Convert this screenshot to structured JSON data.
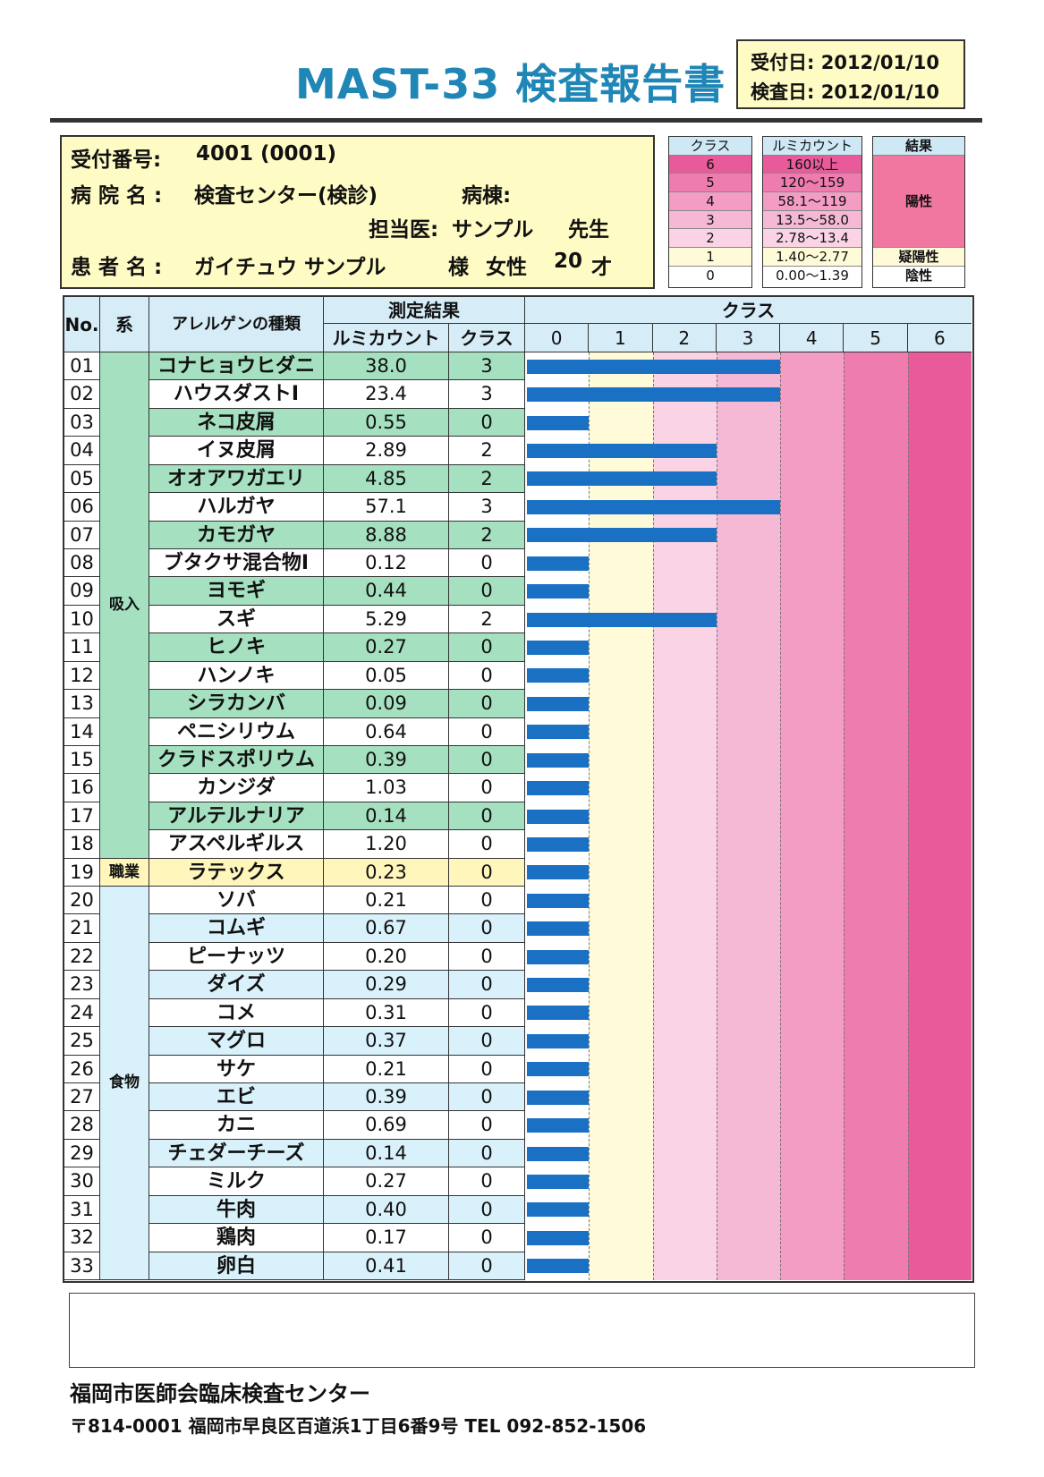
{
  "title": "MAST-33 検査報告書",
  "dates": {
    "received_label": "受付日:",
    "received": "2012/01/10",
    "tested_label": "検査日:",
    "tested": "2012/01/10"
  },
  "info": {
    "receipt_label": "受付番号:",
    "receipt_no": "4001 (0001)",
    "hospital_label": "病 院 名 :",
    "hospital": "検査センター(検診)",
    "ward_label": "病棟:",
    "doctor_label": "担当医:",
    "doctor": "サンプル",
    "doctor_suffix": "先生",
    "patient_label": "患 者 名 :",
    "patient": "ガイチュウ サンプル",
    "patient_suffix": "様",
    "sex": "女性",
    "age": "20",
    "age_unit": "才"
  },
  "legend": {
    "class_header": "クラス",
    "count_header": "ルミカウント",
    "result_header": "結果",
    "rows": [
      {
        "cls": "6",
        "range": "160以上",
        "color": "#e85a9a"
      },
      {
        "cls": "5",
        "range": "120〜159",
        "color": "#ee7cae"
      },
      {
        "cls": "4",
        "range": "58.1〜119",
        "color": "#f39cc4"
      },
      {
        "cls": "3",
        "range": "13.5〜58.0",
        "color": "#f6b9d5"
      },
      {
        "cls": "2",
        "range": "2.78〜13.4",
        "color": "#fad4e5"
      },
      {
        "cls": "1",
        "range": "1.40〜2.77",
        "color": "#fffbd8"
      },
      {
        "cls": "0",
        "range": "0.00〜1.39",
        "color": "#ffffff"
      }
    ],
    "positive": "陽性",
    "borderline": "疑陽性",
    "negative": "陰性"
  },
  "table": {
    "h_no": "No.",
    "h_group": "系",
    "h_allergen": "アレルゲンの種類",
    "h_result": "測定結果",
    "h_count": "ルミカウント",
    "h_class": "クラス",
    "h_chart": "クラス",
    "class_ticks": [
      "0",
      "1",
      "2",
      "3",
      "4",
      "5",
      "6"
    ],
    "groups": [
      {
        "name": "吸入",
        "from": 1,
        "to": 18,
        "color": "#a5e0c0"
      },
      {
        "name": "職業",
        "from": 19,
        "to": 19,
        "color": "#fff6bc"
      },
      {
        "name": "食物",
        "from": 20,
        "to": 33,
        "color": "#d9f1fa"
      }
    ],
    "rows": [
      {
        "no": "01",
        "name": "コナヒョウヒダニ",
        "count": "38.0",
        "cls": "3"
      },
      {
        "no": "02",
        "name": "ハウスダストⅠ",
        "count": "23.4",
        "cls": "3"
      },
      {
        "no": "03",
        "name": "ネコ皮屑",
        "count": "0.55",
        "cls": "0"
      },
      {
        "no": "04",
        "name": "イヌ皮屑",
        "count": "2.89",
        "cls": "2"
      },
      {
        "no": "05",
        "name": "オオアワガエリ",
        "count": "4.85",
        "cls": "2"
      },
      {
        "no": "06",
        "name": "ハルガヤ",
        "count": "57.1",
        "cls": "3"
      },
      {
        "no": "07",
        "name": "カモガヤ",
        "count": "8.88",
        "cls": "2"
      },
      {
        "no": "08",
        "name": "ブタクサ混合物Ⅰ",
        "count": "0.12",
        "cls": "0"
      },
      {
        "no": "09",
        "name": "ヨモギ",
        "count": "0.44",
        "cls": "0"
      },
      {
        "no": "10",
        "name": "スギ",
        "count": "5.29",
        "cls": "2"
      },
      {
        "no": "11",
        "name": "ヒノキ",
        "count": "0.27",
        "cls": "0"
      },
      {
        "no": "12",
        "name": "ハンノキ",
        "count": "0.05",
        "cls": "0"
      },
      {
        "no": "13",
        "name": "シラカンバ",
        "count": "0.09",
        "cls": "0"
      },
      {
        "no": "14",
        "name": "ペニシリウム",
        "count": "0.64",
        "cls": "0"
      },
      {
        "no": "15",
        "name": "クラドスポリウム",
        "count": "0.39",
        "cls": "0"
      },
      {
        "no": "16",
        "name": "カンジダ",
        "count": "1.03",
        "cls": "0"
      },
      {
        "no": "17",
        "name": "アルテルナリア",
        "count": "0.14",
        "cls": "0"
      },
      {
        "no": "18",
        "name": "アスペルギルス",
        "count": "1.20",
        "cls": "0"
      },
      {
        "no": "19",
        "name": "ラテックス",
        "count": "0.23",
        "cls": "0"
      },
      {
        "no": "20",
        "name": "ソバ",
        "count": "0.21",
        "cls": "0"
      },
      {
        "no": "21",
        "name": "コムギ",
        "count": "0.67",
        "cls": "0"
      },
      {
        "no": "22",
        "name": "ピーナッツ",
        "count": "0.20",
        "cls": "0"
      },
      {
        "no": "23",
        "name": "ダイズ",
        "count": "0.29",
        "cls": "0"
      },
      {
        "no": "24",
        "name": "コメ",
        "count": "0.31",
        "cls": "0"
      },
      {
        "no": "25",
        "name": "マグロ",
        "count": "0.37",
        "cls": "0"
      },
      {
        "no": "26",
        "name": "サケ",
        "count": "0.21",
        "cls": "0"
      },
      {
        "no": "27",
        "name": "エビ",
        "count": "0.39",
        "cls": "0"
      },
      {
        "no": "28",
        "name": "カニ",
        "count": "0.69",
        "cls": "0"
      },
      {
        "no": "29",
        "name": "チェダーチーズ",
        "count": "0.14",
        "cls": "0"
      },
      {
        "no": "30",
        "name": "ミルク",
        "count": "0.27",
        "cls": "0"
      },
      {
        "no": "31",
        "name": "牛肉",
        "count": "0.40",
        "cls": "0"
      },
      {
        "no": "32",
        "name": "鶏肉",
        "count": "0.17",
        "cls": "0"
      },
      {
        "no": "33",
        "name": "卵白",
        "count": "0.41",
        "cls": "0"
      }
    ]
  },
  "footer": {
    "org": "福岡市医師会臨床検査センター",
    "address": "〒814-0001 福岡市早良区百道浜1丁目6番9号 TEL 092-852-1506"
  },
  "colors": {
    "title": "#1f86b6",
    "bar": "#1a71c4",
    "header": "#d6edf8",
    "yellow_box": "#fffbc4"
  }
}
